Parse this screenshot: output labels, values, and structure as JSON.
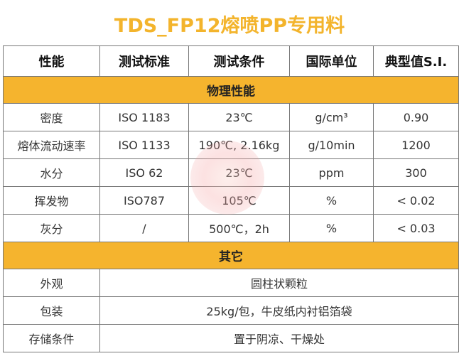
{
  "title": "TDS_FP12熔喷PP专用料",
  "headers": [
    "性能",
    "测试标准",
    "测试条件",
    "国际单位",
    "典型值S.I."
  ],
  "sections": [
    {
      "label": "物理性能",
      "rows": [
        [
          "密度",
          "ISO 1183",
          "23℃",
          "g/cm³",
          "0.90"
        ],
        [
          "熔体流动速率",
          "ISO 1133",
          "190℃, 2.16kg",
          "g/10min",
          "1200"
        ],
        [
          "水分",
          "ISO 62",
          "23℃",
          "ppm",
          "300"
        ],
        [
          "挥发物",
          "ISO787",
          "105℃",
          "%",
          "< 0.02"
        ],
        [
          "灰分",
          "/",
          "500℃，2h",
          "%",
          "< 0.03"
        ]
      ]
    },
    {
      "label": "其它",
      "rows": [
        [
          "外观",
          "圆柱状颗粒"
        ],
        [
          "包装",
          "25kg/包，牛皮纸内衬铝箔袋"
        ],
        [
          "存储条件",
          "置于阴凉、干燥处"
        ]
      ]
    }
  ],
  "colors": {
    "accent": "#f5b42e",
    "title": "#f3b42c"
  }
}
